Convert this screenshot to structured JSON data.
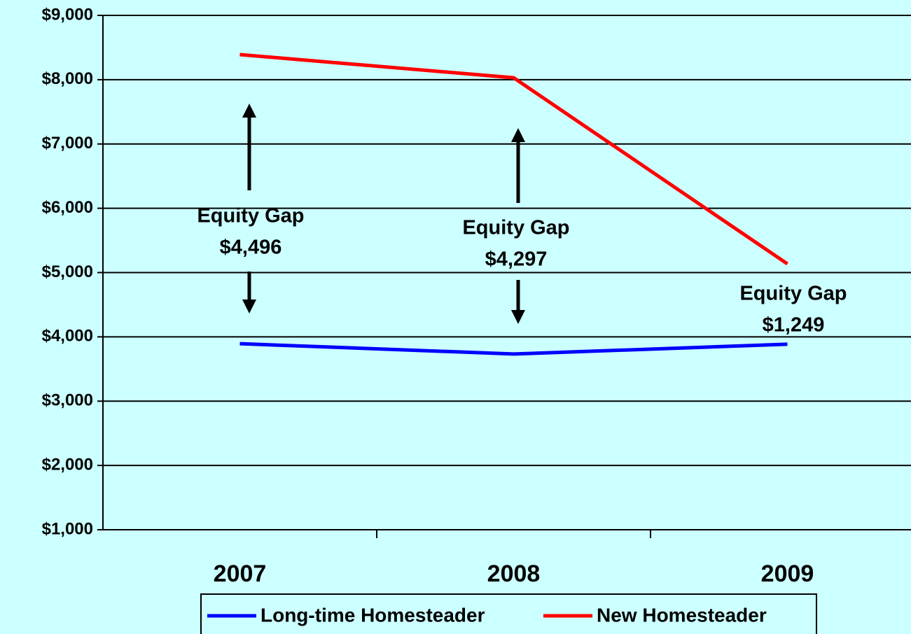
{
  "chart_data": {
    "type": "line",
    "categories": [
      "2007",
      "2008",
      "2009"
    ],
    "series": [
      {
        "name": "Long-time Homesteader",
        "color": "#0000ff",
        "values": [
          3894,
          3733,
          3886
        ]
      },
      {
        "name": "New Homesteader",
        "color": "#ff0000",
        "values": [
          8390,
          8030,
          5135
        ]
      }
    ],
    "ylim": [
      1000,
      9000
    ],
    "yticks": [
      {
        "value": 1000,
        "label": "$1,000"
      },
      {
        "value": 2000,
        "label": "$2,000"
      },
      {
        "value": 3000,
        "label": "$3,000"
      },
      {
        "value": 4000,
        "label": "$4,000"
      },
      {
        "value": 5000,
        "label": "$5,000"
      },
      {
        "value": 6000,
        "label": "$6,000"
      },
      {
        "value": 7000,
        "label": "$7,000"
      },
      {
        "value": 8000,
        "label": "$8,000"
      },
      {
        "value": 9000,
        "label": "$9,000"
      }
    ],
    "grid": true,
    "annotations": [
      {
        "label": "Equity Gap",
        "value": "$4,496"
      },
      {
        "label": "Equity Gap",
        "value": "$4,297"
      },
      {
        "label": "Equity Gap",
        "value": "$1,249"
      }
    ]
  }
}
